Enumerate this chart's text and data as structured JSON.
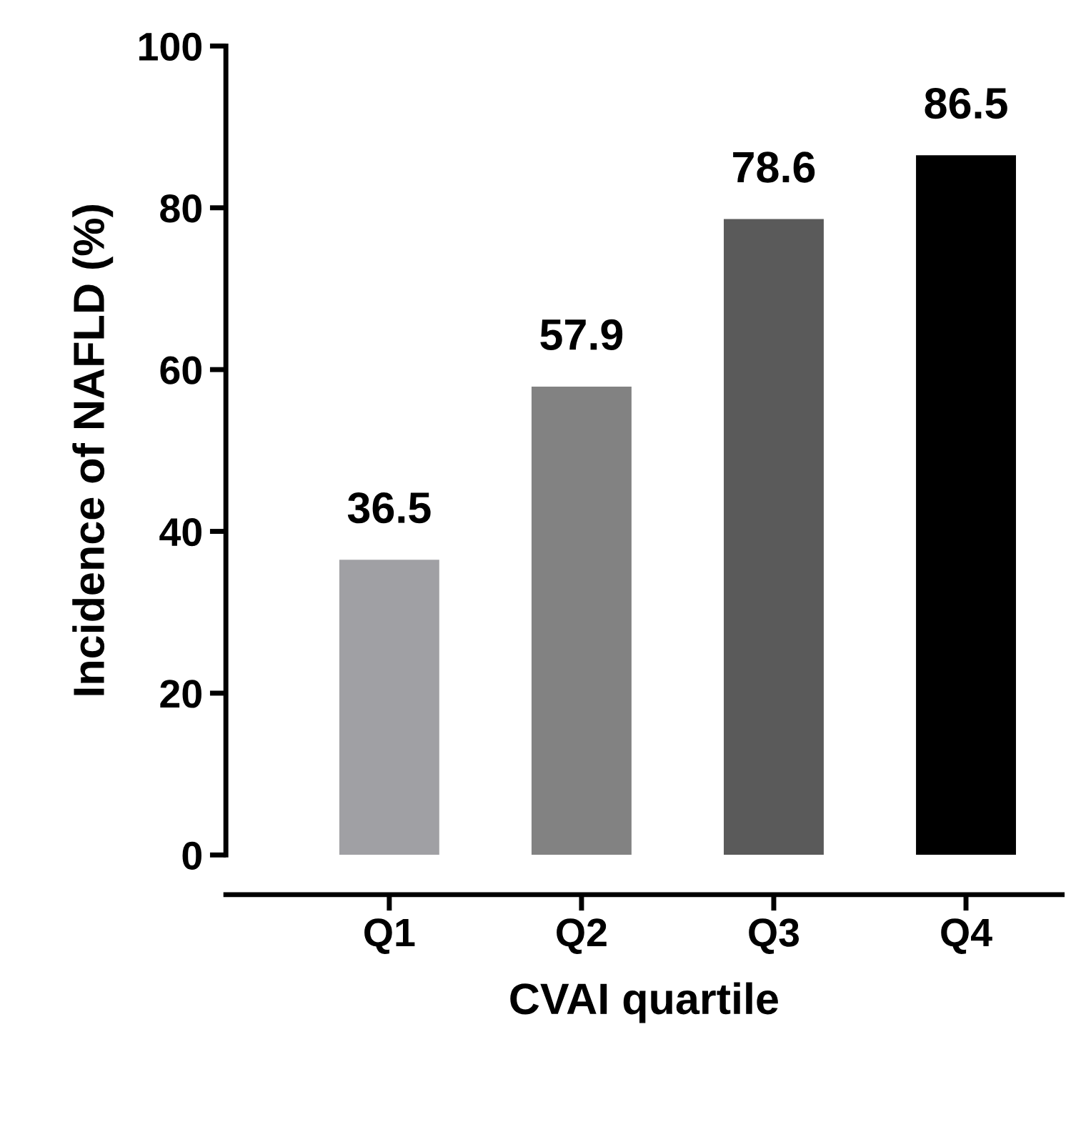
{
  "chart_data": {
    "type": "bar",
    "xlabel": "CVAI quartile",
    "ylabel": "Incidence of NAFLD (%)",
    "categories": [
      "Q1",
      "Q2",
      "Q3",
      "Q4"
    ],
    "values": [
      36.5,
      57.9,
      78.6,
      86.5
    ],
    "colors": [
      "#a0a0a4",
      "#828282",
      "#5a5a5a",
      "#000000"
    ],
    "ylim": [
      0,
      100
    ],
    "yticks": [
      0,
      20,
      40,
      60,
      80,
      100
    ],
    "data_labels": true,
    "grid": false,
    "legend": false
  }
}
